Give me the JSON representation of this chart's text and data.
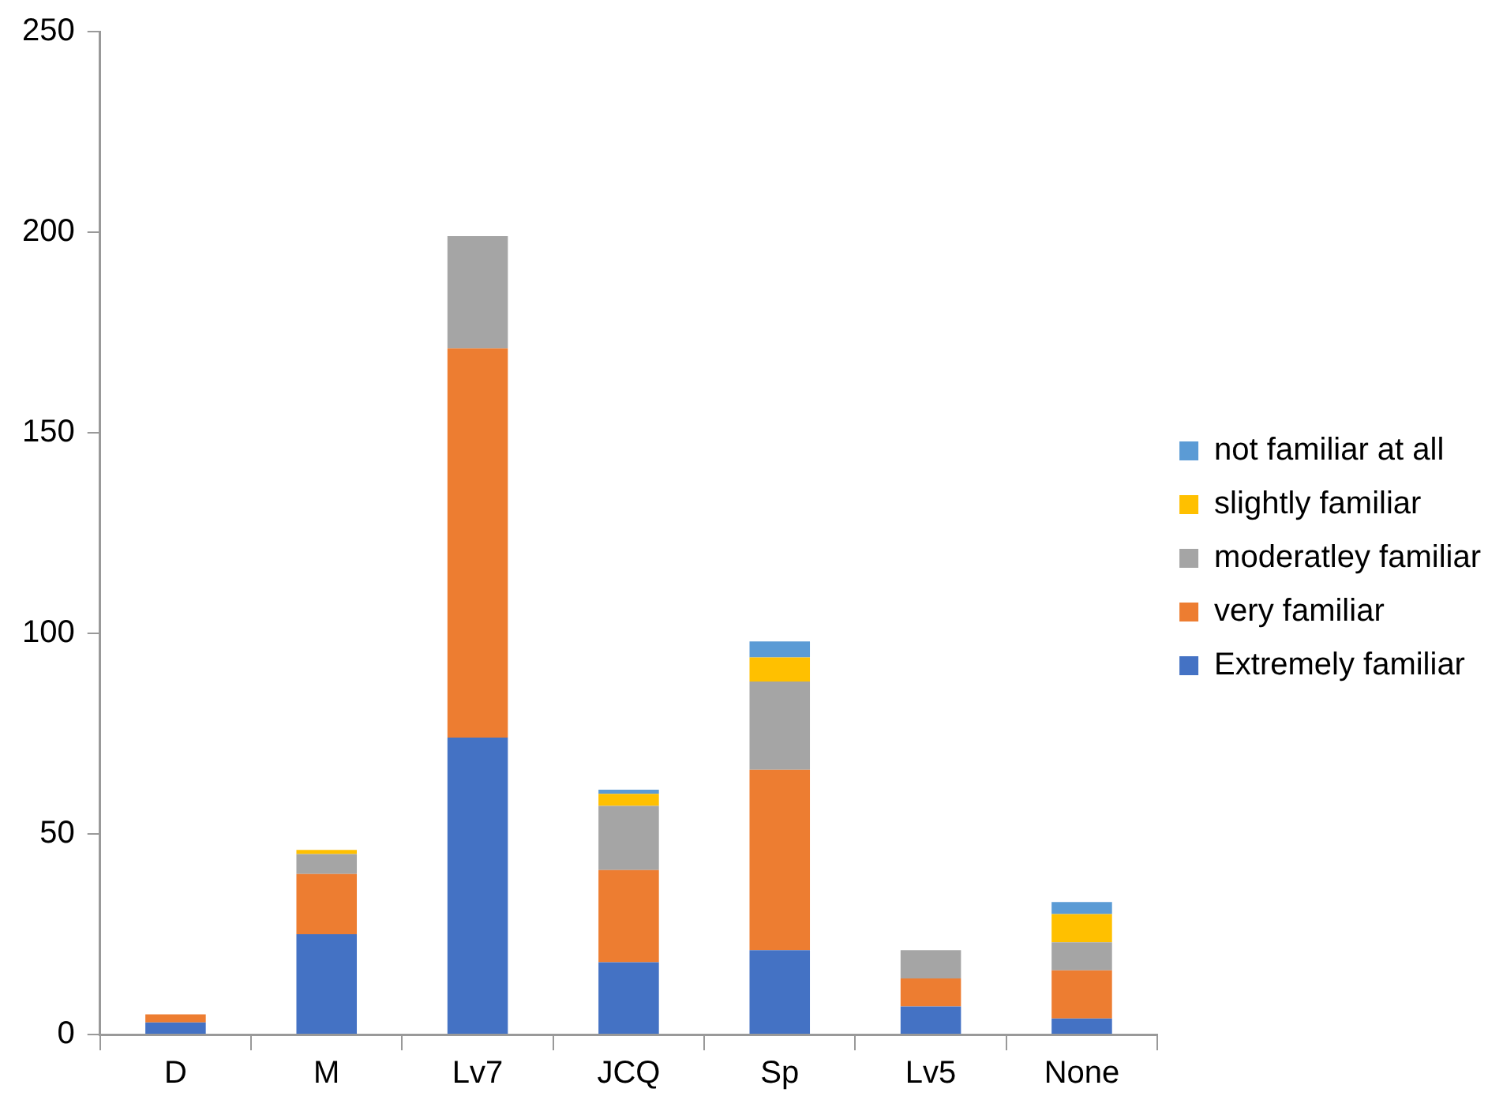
{
  "chart_data": {
    "type": "bar",
    "stacked": true,
    "categories": [
      "D",
      "M",
      "Lv7",
      "JCQ",
      "Sp",
      "Lv5",
      "None"
    ],
    "series": [
      {
        "name": "Extremely familiar",
        "color": "#4472c4",
        "values": [
          3,
          25,
          74,
          18,
          21,
          7,
          4
        ]
      },
      {
        "name": "very familiar",
        "color": "#ed7d31",
        "values": [
          2,
          15,
          97,
          23,
          45,
          7,
          12
        ]
      },
      {
        "name": "moderatley familiar",
        "color": "#a5a5a5",
        "values": [
          null,
          5,
          28,
          16,
          22,
          7,
          7
        ]
      },
      {
        "name": "slightly familiar",
        "color": "#ffc000",
        "values": [
          null,
          1,
          null,
          3,
          6,
          null,
          7
        ]
      },
      {
        "name": "not familiar at all",
        "color": "#5b9bd5",
        "values": [
          null,
          null,
          null,
          1,
          4,
          null,
          3
        ]
      }
    ],
    "ylim": [
      0,
      250
    ],
    "yticks": [
      0,
      50,
      100,
      150,
      200,
      250
    ],
    "grid": false,
    "legend": "right"
  }
}
